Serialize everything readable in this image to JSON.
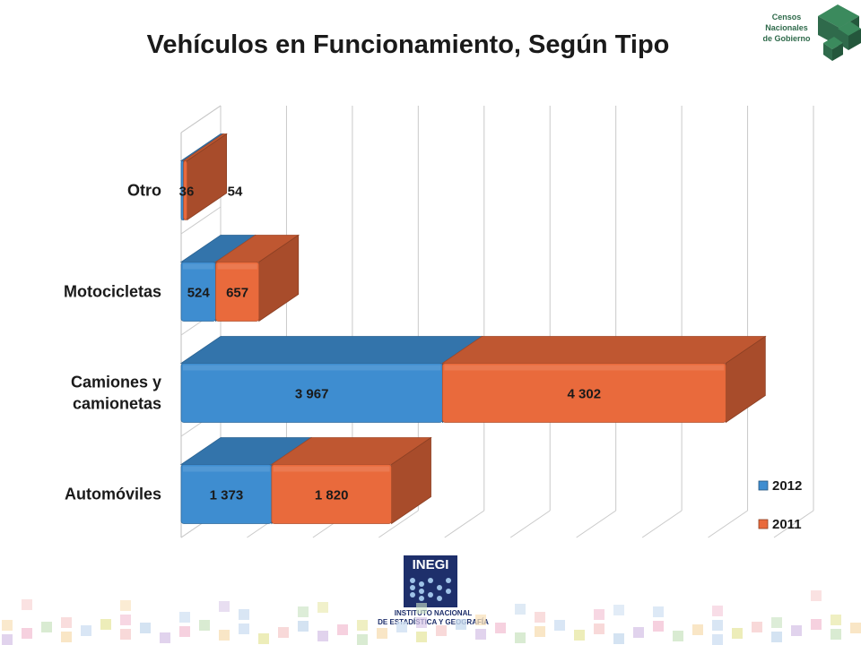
{
  "title": "Vehículos en Funcionamiento, Según Tipo",
  "logo": {
    "censos_lines": [
      "Censos",
      "Nacionales",
      "de Gobierno"
    ],
    "inegi_word": "INEGI",
    "inegi_line1": "INSTITUTO NACIONAL",
    "inegi_line2": "DE ESTADÍSTICA Y GEOGRAFÍA"
  },
  "colors": {
    "series_2012": "#3e8dd0",
    "series_2011": "#e96a3c",
    "logo_green": "#2f6a4b",
    "inegi_blue": "#1e2f6b"
  },
  "chart_data": {
    "type": "bar",
    "orientation": "horizontal",
    "stacked": true,
    "three_d": true,
    "categories": [
      "Otro",
      "Motocicletas",
      "Camiones y camionetas",
      "Automóviles"
    ],
    "category_label_lines": [
      [
        "Otro"
      ],
      [
        "Motocicletas"
      ],
      [
        "Camiones y",
        "camionetas"
      ],
      [
        "Automóviles"
      ]
    ],
    "series": [
      {
        "name": "2012",
        "values": [
          36,
          524,
          3967,
          1373
        ],
        "labels": [
          "36",
          "524",
          "3 967",
          "1 373"
        ],
        "color": "#3e8dd0"
      },
      {
        "name": "2011",
        "values": [
          54,
          657,
          4302,
          1820
        ],
        "labels": [
          "54",
          "657",
          "4 302",
          "1 820"
        ],
        "color": "#e96a3c"
      }
    ],
    "xlim": [
      0,
      9000
    ],
    "grid": "vertical",
    "legend_position": "bottom-right"
  }
}
